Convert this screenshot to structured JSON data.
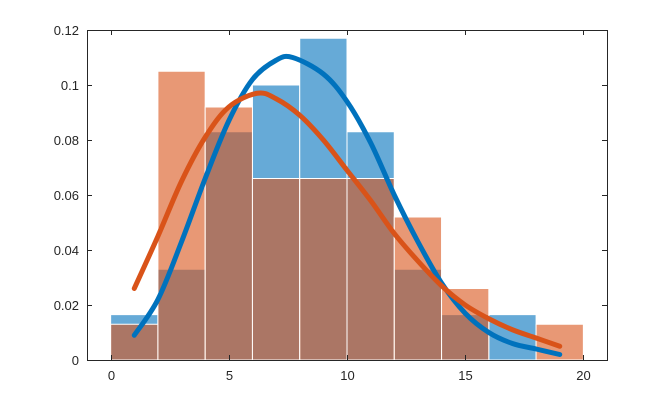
{
  "chart_data": {
    "type": "bar",
    "bin_edges": [
      0,
      2,
      4,
      6,
      8,
      10,
      12,
      14,
      16,
      18,
      20
    ],
    "series": [
      {
        "color": "#0072BD",
        "bar_alpha": 0.6,
        "values": [
          0.0165,
          0.033,
          0.083,
          0.1,
          0.117,
          0.083,
          0.033,
          0.0165,
          0.0165,
          0
        ]
      },
      {
        "color": "#D95319",
        "bar_alpha": 0.6,
        "values": [
          0.013,
          0.105,
          0.092,
          0.066,
          0.066,
          0.066,
          0.052,
          0.026,
          0,
          0.013
        ]
      }
    ],
    "fits": [
      {
        "color": "#0072BD",
        "x": [
          1,
          2,
          3,
          4,
          5,
          6,
          7,
          7.7,
          9,
          10,
          11,
          12,
          13,
          14,
          15,
          16,
          17,
          18,
          19
        ],
        "y": [
          0.009,
          0.022,
          0.043,
          0.066,
          0.087,
          0.102,
          0.109,
          0.11,
          0.104,
          0.094,
          0.079,
          0.06,
          0.043,
          0.028,
          0.017,
          0.01,
          0.006,
          0.004,
          0.002
        ]
      },
      {
        "color": "#D95319",
        "x": [
          1,
          2,
          3,
          4,
          5,
          6.2,
          7,
          8,
          9,
          10,
          11,
          12,
          13,
          14,
          15,
          16,
          17,
          18,
          19
        ],
        "y": [
          0.026,
          0.045,
          0.065,
          0.081,
          0.092,
          0.097,
          0.095,
          0.089,
          0.08,
          0.069,
          0.058,
          0.046,
          0.036,
          0.027,
          0.02,
          0.015,
          0.011,
          0.008,
          0.005
        ]
      }
    ],
    "xlim": [
      -1,
      21
    ],
    "ylim": [
      0,
      0.12
    ],
    "x_ticks": [
      "0",
      "5",
      "10",
      "15",
      "20"
    ],
    "x_tick_values": [
      0,
      5,
      10,
      15,
      20
    ],
    "y_ticks": [
      "0",
      "0.02",
      "0.04",
      "0.06",
      "0.08",
      "0.1",
      "0.12"
    ],
    "y_tick_values": [
      0,
      0.02,
      0.04,
      0.06,
      0.08,
      0.1,
      0.12
    ],
    "grid": false,
    "box": true,
    "title": "",
    "xlabel": "",
    "ylabel": ""
  }
}
